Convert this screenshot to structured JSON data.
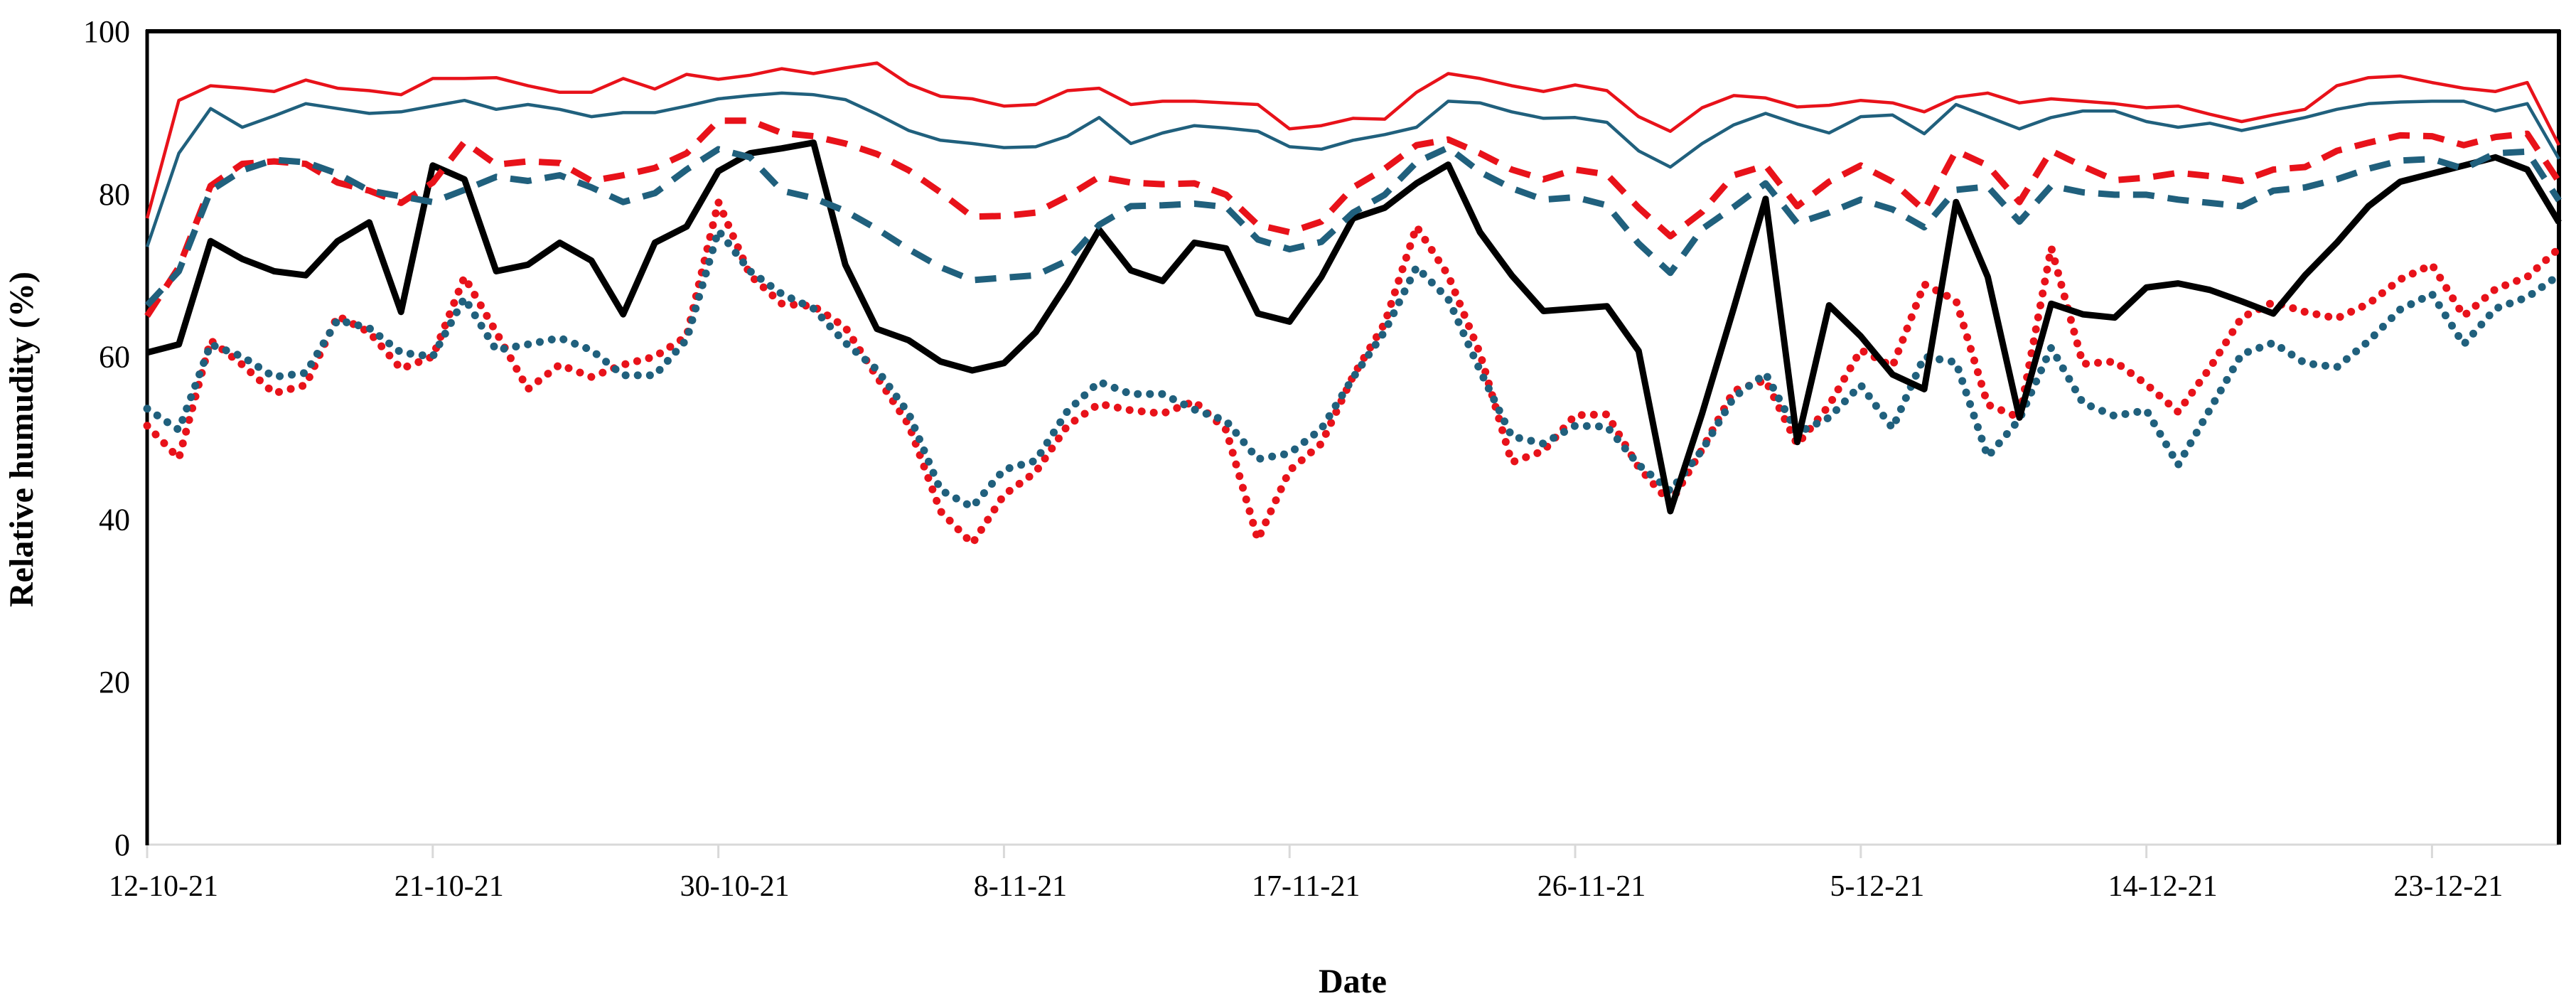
{
  "figure": {
    "background": "#ffffff",
    "frame_color": "#000000",
    "x_axis_line_color": "#d9d9d9",
    "red_color": "#e8121a",
    "teal_color": "#20607d",
    "black_color": "#000000"
  },
  "chart_data": {
    "type": "line",
    "title": "",
    "xlabel": "Date",
    "ylabel": "Relative humudity (%)",
    "ylim": [
      0,
      100
    ],
    "yticks": [
      0,
      20,
      40,
      60,
      80,
      100
    ],
    "grid": false,
    "legend": "none",
    "xtick_labels": [
      "12-10-21",
      "21-10-21",
      "30-10-21",
      "8-11-21",
      "17-11-21",
      "26-11-21",
      "5-12-21",
      "14-12-21",
      "23-12-21"
    ],
    "xtick_indices": [
      0,
      9,
      18,
      27,
      36,
      45,
      54,
      63,
      72
    ],
    "dates": [
      "12-10-21",
      "13-10-21",
      "14-10-21",
      "15-10-21",
      "16-10-21",
      "17-10-21",
      "18-10-21",
      "19-10-21",
      "20-10-21",
      "21-10-21",
      "22-10-21",
      "23-10-21",
      "24-10-21",
      "25-10-21",
      "26-10-21",
      "27-10-21",
      "28-10-21",
      "29-10-21",
      "30-10-21",
      "31-10-21",
      "1-11-21",
      "2-11-21",
      "3-11-21",
      "4-11-21",
      "5-11-21",
      "6-11-21",
      "7-11-21",
      "8-11-21",
      "9-11-21",
      "10-11-21",
      "11-11-21",
      "12-11-21",
      "13-11-21",
      "14-11-21",
      "15-11-21",
      "16-11-21",
      "17-11-21",
      "18-11-21",
      "19-11-21",
      "20-11-21",
      "21-11-21",
      "22-11-21",
      "23-11-21",
      "24-11-21",
      "25-11-21",
      "26-11-21",
      "27-11-21",
      "28-11-21",
      "29-11-21",
      "30-11-21",
      "1-12-21",
      "2-12-21",
      "3-12-21",
      "4-12-21",
      "5-12-21",
      "6-12-21",
      "7-12-21",
      "8-12-21",
      "9-12-21",
      "10-12-21",
      "11-12-21",
      "12-12-21",
      "13-12-21",
      "14-12-21",
      "15-12-21",
      "16-12-21",
      "17-12-21",
      "18-12-21",
      "19-12-21",
      "20-12-21",
      "21-12-21",
      "22-12-21",
      "23-12-21",
      "24-12-21",
      "25-12-21",
      "26-12-21",
      "27-12-21"
    ],
    "series": [
      {
        "name": "red-solid",
        "color": "#e8121a",
        "line_style": "solid",
        "line_width": 4.5,
        "values": [
          77,
          91.5,
          93.3,
          93,
          92.6,
          94,
          93,
          92.7,
          92.2,
          94.2,
          94.2,
          94.3,
          93.3,
          92.5,
          92.5,
          94.2,
          92.9,
          94.7,
          94.1,
          94.6,
          95.4,
          94.8,
          95.5,
          96.1,
          93.5,
          92,
          91.7,
          90.8,
          91,
          92.7,
          93,
          91,
          91.4,
          91.4,
          91.2,
          91,
          88,
          88.4,
          89.3,
          89.2,
          92.5,
          94.8,
          94.2,
          93.3,
          92.6,
          93.4,
          92.7,
          89.5,
          87.7,
          90.6,
          92.1,
          91.8,
          90.7,
          90.9,
          91.5,
          91.2,
          90.1,
          91.9,
          92.4,
          91.2,
          91.7,
          91.4,
          91.1,
          90.6,
          90.8,
          89.8,
          88.9,
          89.7,
          90.4,
          93.3,
          94.3,
          94.5,
          93.7,
          93,
          92.6,
          93.7,
          86
        ]
      },
      {
        "name": "teal-solid",
        "color": "#20607d",
        "line_style": "solid",
        "line_width": 4.5,
        "values": [
          73.5,
          85,
          90.5,
          88.2,
          89.6,
          91.1,
          90.5,
          89.9,
          90.1,
          90.8,
          91.5,
          90.4,
          91,
          90.4,
          89.5,
          90,
          90,
          90.8,
          91.7,
          92.1,
          92.4,
          92.2,
          91.6,
          89.8,
          87.8,
          86.6,
          86.2,
          85.7,
          85.8,
          87.1,
          89.4,
          86.2,
          87.5,
          88.4,
          88.1,
          87.7,
          85.8,
          85.5,
          86.6,
          87.3,
          88.2,
          91.4,
          91.2,
          90.1,
          89.3,
          89.4,
          88.8,
          85.3,
          83.3,
          86.2,
          88.5,
          89.9,
          88.6,
          87.5,
          89.5,
          89.7,
          87.4,
          91,
          89.5,
          88,
          89.4,
          90.2,
          90.2,
          88.9,
          88.2,
          88.7,
          87.8,
          88.6,
          89.4,
          90.4,
          91.1,
          91.3,
          91.4,
          91.4,
          90.2,
          91.1,
          84.3
        ]
      },
      {
        "name": "red-dashed",
        "color": "#e8121a",
        "line_style": "dashed",
        "line_width": 9,
        "values": [
          65,
          71,
          81,
          83.7,
          84,
          83.7,
          81.4,
          80.4,
          78.9,
          81.4,
          86.4,
          83.6,
          84,
          83.8,
          81.6,
          82.3,
          83.2,
          85,
          89,
          89,
          87.5,
          87.1,
          86.2,
          84.9,
          82.9,
          80.2,
          77.2,
          77.3,
          77.7,
          79.7,
          82.1,
          81.4,
          81.2,
          81.3,
          79.9,
          76.2,
          75.3,
          76.6,
          80.8,
          83.1,
          86,
          86.7,
          85,
          83,
          81.8,
          83,
          82.4,
          78.3,
          74.8,
          77.8,
          82.3,
          83.5,
          78.5,
          81.5,
          83.5,
          81.5,
          78,
          85.3,
          83.5,
          79,
          85.3,
          83.4,
          81.7,
          82,
          82.6,
          82.2,
          81.6,
          83,
          83.3,
          85.3,
          86.3,
          87.2,
          87.1,
          86,
          87,
          87.4,
          81.5
        ]
      },
      {
        "name": "teal-dashed",
        "color": "#20607d",
        "line_style": "dashed",
        "line_width": 9,
        "values": [
          66.3,
          70.5,
          80.4,
          82.9,
          84.2,
          83.9,
          82.5,
          80.4,
          79.7,
          79,
          80.5,
          82.1,
          81.6,
          82.3,
          80.8,
          79,
          80.1,
          83,
          85.5,
          84.5,
          80.4,
          79.5,
          77.9,
          75.7,
          73.2,
          71,
          69.4,
          69.7,
          70,
          71.8,
          76.2,
          78.5,
          78.6,
          78.8,
          78.4,
          74.4,
          73.2,
          74.1,
          77.7,
          79.9,
          83.9,
          85.7,
          82.7,
          80.7,
          79.3,
          79.6,
          78.6,
          73.9,
          70.3,
          75.7,
          78.4,
          81.3,
          76.4,
          77.7,
          79.3,
          78.1,
          75.9,
          80.5,
          80.9,
          76.6,
          81,
          80.2,
          79.9,
          79.9,
          79.3,
          78.9,
          78.5,
          80.4,
          80.8,
          81.8,
          83.1,
          84.1,
          84.3,
          83.1,
          85,
          85.2,
          79.2
        ]
      },
      {
        "name": "black-solid",
        "color": "#000000",
        "line_style": "solid",
        "line_width": 9,
        "values": [
          60.5,
          61.5,
          74.2,
          72,
          70.5,
          70,
          74.2,
          76.5,
          65.5,
          83.5,
          81.8,
          70.5,
          71.3,
          74,
          71.8,
          65.2,
          74,
          76,
          82.8,
          85,
          85.6,
          86.3,
          71.3,
          63.4,
          62,
          59.4,
          58.3,
          59.2,
          63,
          69,
          75.6,
          70.6,
          69.3,
          74,
          73.3,
          65.3,
          64.3,
          69.8,
          77,
          78.3,
          81.3,
          83.6,
          75.3,
          70,
          65.6,
          65.9,
          66.2,
          60.7,
          41,
          53,
          66,
          79.4,
          49.5,
          66.3,
          62.5,
          57.8,
          56,
          79,
          69.8,
          52.5,
          66.5,
          65.2,
          64.8,
          68.5,
          69,
          68.2,
          66.8,
          65.3,
          70,
          74,
          78.5,
          81.5,
          82.5,
          83.5,
          84.5,
          83,
          76.5
        ]
      },
      {
        "name": "red-dotted",
        "color": "#e8121a",
        "line_style": "dotted",
        "line_width": 11,
        "values": [
          51.5,
          47.5,
          62,
          59,
          55.5,
          56.5,
          65,
          63,
          58.5,
          60,
          69.8,
          63,
          56,
          59,
          57.5,
          59,
          60,
          62.5,
          79,
          70,
          66.5,
          66.2,
          63.6,
          57.5,
          51.6,
          41,
          37,
          43,
          45.8,
          51.5,
          54.2,
          53.4,
          53,
          54.5,
          51,
          37.5,
          46,
          49.3,
          57.6,
          64.1,
          76,
          70,
          60.4,
          47,
          48.4,
          52.8,
          52.9,
          46.4,
          42,
          48.6,
          55.8,
          57.1,
          49.2,
          54,
          60.8,
          58.8,
          68.9,
          66.9,
          54.1,
          52.5,
          73.4,
          59.1,
          59.4,
          56.6,
          53.2,
          58.6,
          64.8,
          66.7,
          65.5,
          64.7,
          66.5,
          69.5,
          71.3,
          65,
          68.3,
          69.8,
          73.3
        ]
      },
      {
        "name": "teal-dotted",
        "color": "#20607d",
        "line_style": "dotted",
        "line_width": 11,
        "values": [
          53.6,
          51,
          61.5,
          60,
          57.5,
          58,
          64.5,
          63.5,
          60.5,
          60,
          67.2,
          60.8,
          61.5,
          62.3,
          60.8,
          57.7,
          57.7,
          62.1,
          75.5,
          70.5,
          67.7,
          65.9,
          61.7,
          58.4,
          53,
          43.6,
          41.5,
          46.1,
          47.2,
          53.3,
          56.9,
          55.4,
          55.4,
          53.5,
          52.1,
          47.4,
          48.1,
          51.1,
          57.4,
          63.1,
          71,
          67.1,
          58.3,
          50.2,
          49.3,
          51.5,
          51.4,
          46.7,
          43.5,
          48.5,
          55,
          57.9,
          50.6,
          52.5,
          56.5,
          51.2,
          60,
          59.3,
          47.7,
          52.3,
          61.1,
          54.3,
          52.7,
          53.4,
          46.7,
          53.5,
          60.3,
          61.7,
          59.2,
          58.7,
          61.9,
          65.8,
          67.7,
          61.5,
          65.9,
          67.3,
          70
        ]
      }
    ]
  }
}
